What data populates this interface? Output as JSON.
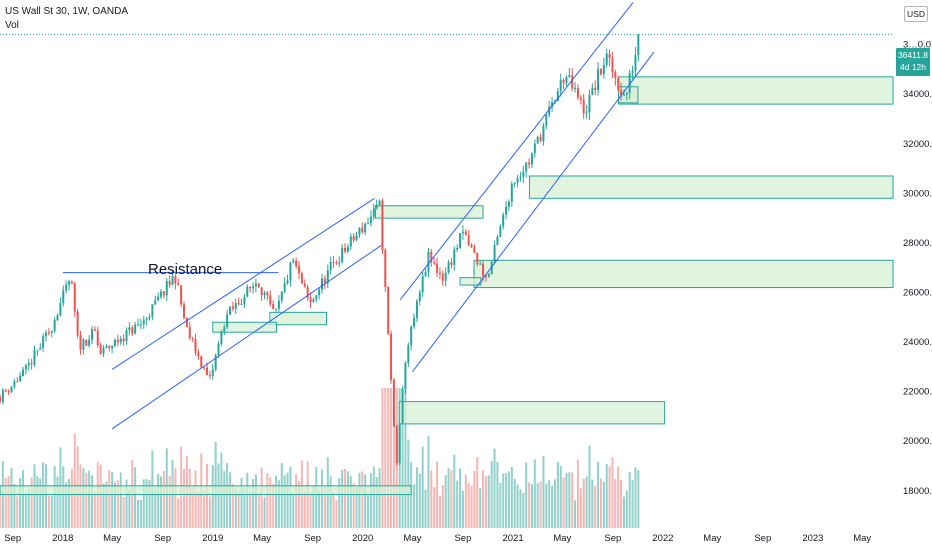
{
  "legend": {
    "symbol": "US Wall St 30, 1W, OANDA",
    "volume_label": "Vol"
  },
  "currency": "USD",
  "last_price": {
    "value": "36411.8",
    "countdown": "4d 12h"
  },
  "annotation_text": "Resistance",
  "colors": {
    "up": "#26a69a",
    "down": "#ef5350",
    "vol_up": "#7fc9c2",
    "vol_down": "#f4a9a7",
    "zone_fill": "#d7f0d4",
    "zone_border": "#26a69a",
    "trendline": "#2962ff",
    "text": "#131722",
    "last_price_line": "#26a69a"
  },
  "chart_data": {
    "type": "candlestick",
    "y_axis": {
      "ticks": [
        18000,
        20000,
        22000,
        24000,
        26000,
        28000,
        30000,
        32000,
        34000,
        36000
      ],
      "tick_labels": [
        "18000.0",
        "20000.0",
        "22000.0",
        "24000.0",
        "26000.0",
        "28000.0",
        "30000.0",
        "32000.0",
        "34000.0",
        "3…0.0"
      ],
      "range": [
        16500,
        37800
      ]
    },
    "x_axis": {
      "labels": [
        "Sep",
        "2018",
        "May",
        "Sep",
        "2019",
        "May",
        "Sep",
        "2020",
        "May",
        "Sep",
        "2021",
        "May",
        "Sep",
        "2022",
        "May",
        "Sep",
        "2023",
        "May"
      ],
      "range": [
        "2017-08-01",
        "2023-07-15"
      ]
    },
    "price_path": [
      [
        "2017-08-01",
        21800
      ],
      [
        "2017-10-01",
        22800
      ],
      [
        "2017-12-01",
        24500
      ],
      [
        "2018-01-20",
        26600
      ],
      [
        "2018-02-08",
        23800
      ],
      [
        "2018-03-20",
        24400
      ],
      [
        "2018-04-01",
        23500
      ],
      [
        "2018-06-01",
        24300
      ],
      [
        "2018-07-15",
        24800
      ],
      [
        "2018-10-01",
        26700
      ],
      [
        "2018-10-29",
        24500
      ],
      [
        "2018-12-24",
        22400
      ],
      [
        "2019-02-01",
        25000
      ],
      [
        "2019-04-20",
        26500
      ],
      [
        "2019-06-01",
        25000
      ],
      [
        "2019-07-15",
        27300
      ],
      [
        "2019-08-25",
        25500
      ],
      [
        "2019-10-15",
        27000
      ],
      [
        "2019-12-31",
        28600
      ],
      [
        "2020-02-12",
        29500
      ],
      [
        "2020-03-23",
        19000
      ],
      [
        "2020-04-15",
        23500
      ],
      [
        "2020-06-08",
        27400
      ],
      [
        "2020-07-15",
        26600
      ],
      [
        "2020-09-01",
        28400
      ],
      [
        "2020-10-30",
        26500
      ],
      [
        "2020-12-31",
        30500
      ],
      [
        "2021-02-10",
        31300
      ],
      [
        "2021-05-07",
        34800
      ],
      [
        "2021-06-25",
        33300
      ],
      [
        "2021-08-15",
        35500
      ],
      [
        "2021-10-01",
        33800
      ],
      [
        "2021-11-05",
        36411.8
      ]
    ],
    "volume_range": [
      0,
      100
    ],
    "zones": [
      {
        "from": "2021-09-15",
        "to": "2023-07-15",
        "low": 33600,
        "high": 34700
      },
      {
        "from": "2021-02-10",
        "to": "2023-07-15",
        "low": 29800,
        "high": 30700
      },
      {
        "from": "2020-09-28",
        "to": "2023-07-15",
        "low": 26200,
        "high": 27300
      },
      {
        "from": "2020-03-30",
        "to": "2022-01-05",
        "low": 20700,
        "high": 21600
      },
      {
        "from": "2017-08-01",
        "to": "2020-04-28",
        "low": 17850,
        "high": 18200
      },
      {
        "from": "2020-02-01",
        "to": "2020-10-20",
        "low": 29000,
        "high": 29500
      },
      {
        "from": "2019-05-20",
        "to": "2019-10-05",
        "low": 24700,
        "high": 25200
      },
      {
        "from": "2019-01-01",
        "to": "2019-06-05",
        "low": 24400,
        "high": 24800
      },
      {
        "from": "2020-08-25",
        "to": "2020-10-15",
        "low": 26300,
        "high": 26600
      },
      {
        "from": "2021-09-15",
        "to": "2021-11-01",
        "low": 33650,
        "high": 34300
      }
    ],
    "trendlines": [
      {
        "from": [
          "2018-01-01",
          26800
        ],
        "to": [
          "2019-06-10",
          26800
        ]
      },
      {
        "from": [
          "2018-05-01",
          22900
        ],
        "to": [
          "2020-01-30",
          29800
        ]
      },
      {
        "from": [
          "2018-05-01",
          20500
        ],
        "to": [
          "2020-02-15",
          27900
        ]
      },
      {
        "from": [
          "2020-04-01",
          25700
        ],
        "to": [
          "2021-10-20",
          37700
        ]
      },
      {
        "from": [
          "2020-05-01",
          22800
        ],
        "to": [
          "2021-12-10",
          35700
        ]
      }
    ]
  }
}
